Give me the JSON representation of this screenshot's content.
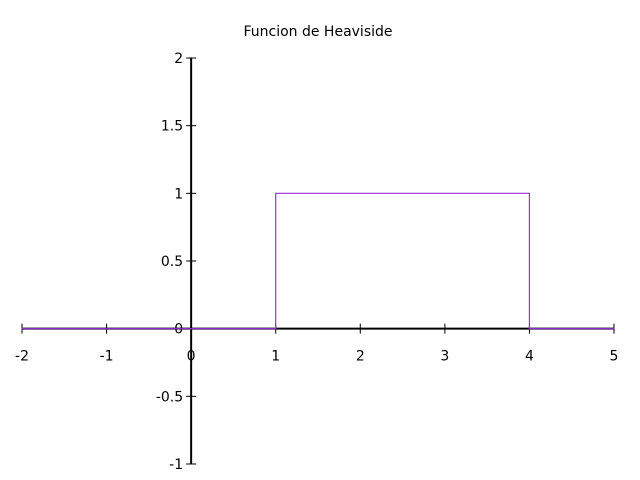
{
  "chart_data": {
    "type": "line",
    "title": "Funcion de Heaviside",
    "xlabel": "",
    "ylabel": "",
    "xlim": [
      -2,
      5
    ],
    "ylim": [
      -1,
      2
    ],
    "x_ticks": [
      "-2",
      "-1",
      "0",
      "1",
      "2",
      "3",
      "4",
      "5"
    ],
    "y_ticks": [
      "-1",
      "-0.5",
      "0",
      "0.5",
      "1",
      "1.5",
      "2"
    ],
    "grid": false,
    "series": [
      {
        "color": "#9a30e0",
        "x": [
          -2,
          1,
          1,
          4,
          4,
          5
        ],
        "y": [
          0,
          0,
          1,
          1,
          0,
          0
        ]
      }
    ],
    "axis_color": "#000000"
  }
}
